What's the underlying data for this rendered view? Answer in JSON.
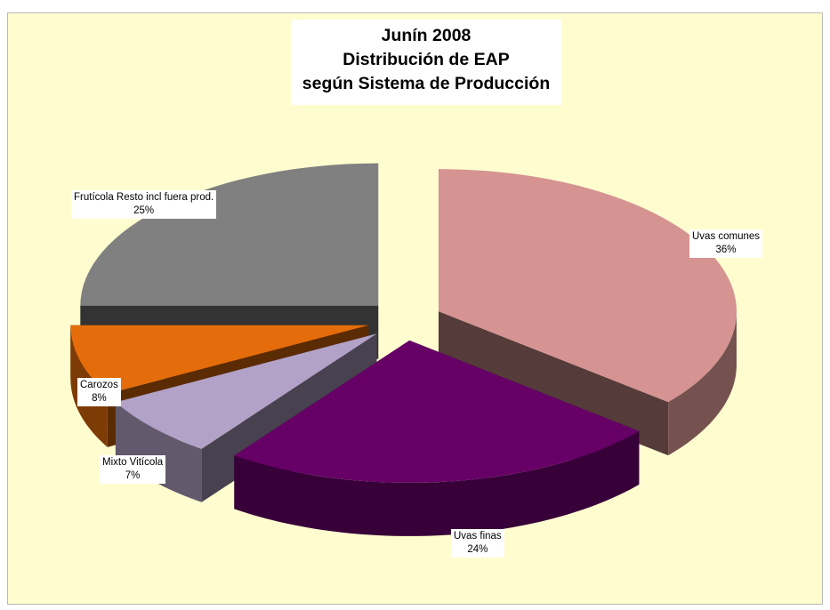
{
  "chart_data": {
    "type": "pie",
    "title_lines": [
      "Junín 2008",
      "Distribución de  EAP",
      "según Sistema de Producción"
    ],
    "slices": [
      {
        "label": "Uvas comunes",
        "value": 36,
        "value_label": "36%",
        "color": "#d59391"
      },
      {
        "label": "Uvas finas",
        "value": 24,
        "value_label": "24%",
        "color": "#660066"
      },
      {
        "label": "Mixto Vitícola",
        "value": 7,
        "value_label": "7%",
        "color": "#b3a2c7"
      },
      {
        "label": "Carozos",
        "value": 8,
        "value_label": "8%",
        "color": "#e46c0a"
      },
      {
        "label": "Frutícola Resto incl fuera prod.",
        "value": 25,
        "value_label": "25%",
        "color": "#808080"
      }
    ],
    "style": "3d-exploded",
    "legend": "none"
  },
  "colors": {
    "plot_background": "#fffdd0"
  }
}
